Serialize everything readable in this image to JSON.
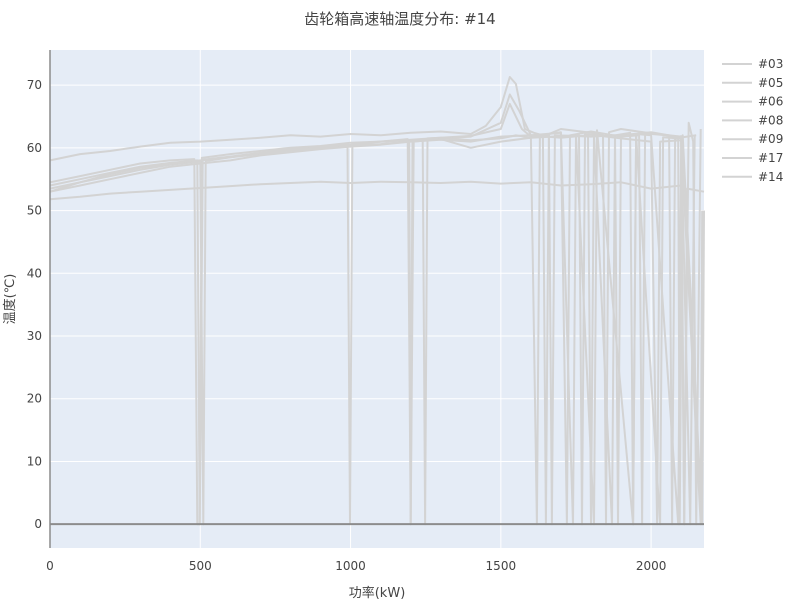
{
  "chart_data": {
    "type": "line",
    "title": "齿轮箱高速轴温度分布: #14",
    "xlabel": "功率(kW)",
    "ylabel": "温度(℃)",
    "xlim": [
      0,
      2176
    ],
    "ylim": [
      -3.8,
      75.6
    ],
    "xticks": [
      0,
      500,
      1000,
      1500,
      2000
    ],
    "yticks": [
      0,
      10,
      20,
      30,
      40,
      50,
      60,
      70
    ],
    "grid": true,
    "legend_position": "right",
    "colors": {
      "line": "#d3d3d3",
      "plot_bg": "#e5ecf6",
      "grid": "#ffffff",
      "zero_line": "#8c8c8c"
    },
    "series": [
      {
        "name": "#03",
        "points": [
          [
            0,
            58
          ],
          [
            100,
            59
          ],
          [
            200,
            59.5
          ],
          [
            300,
            60.2
          ],
          [
            400,
            60.8
          ],
          [
            500,
            61
          ],
          [
            600,
            61.3
          ],
          [
            700,
            61.6
          ],
          [
            800,
            62
          ],
          [
            900,
            61.8
          ],
          [
            1000,
            62.2
          ],
          [
            1100,
            62
          ],
          [
            1200,
            62.4
          ],
          [
            1300,
            62.6
          ],
          [
            1400,
            62.2
          ],
          [
            1450,
            63.5
          ],
          [
            1500,
            66.5
          ],
          [
            1530,
            71.3
          ],
          [
            1550,
            70.2
          ],
          [
            1580,
            63
          ],
          [
            1610,
            62.4
          ],
          [
            1640,
            62
          ],
          [
            1650,
            0
          ],
          [
            1660,
            62.2
          ],
          [
            1700,
            63
          ],
          [
            1800,
            62.4
          ],
          [
            1840,
            62
          ],
          [
            1850,
            0
          ],
          [
            1860,
            62.5
          ],
          [
            1900,
            63
          ],
          [
            2000,
            62.3
          ],
          [
            2100,
            61.8
          ],
          [
            2110,
            0
          ],
          [
            2125,
            64
          ],
          [
            2140,
            61
          ],
          [
            2150,
            0
          ],
          [
            2165,
            63
          ]
        ]
      },
      {
        "name": "#05",
        "points": [
          [
            0,
            54.5
          ],
          [
            100,
            55.5
          ],
          [
            200,
            56.5
          ],
          [
            300,
            57.5
          ],
          [
            400,
            58
          ],
          [
            480,
            58.2
          ],
          [
            490,
            0
          ],
          [
            498,
            0
          ],
          [
            505,
            58.4
          ],
          [
            600,
            59
          ],
          [
            700,
            59.5
          ],
          [
            800,
            60
          ],
          [
            900,
            60.3
          ],
          [
            1000,
            60.8
          ],
          [
            1100,
            61
          ],
          [
            1190,
            61.4
          ],
          [
            1200,
            0
          ],
          [
            1210,
            61.2
          ],
          [
            1300,
            61.5
          ],
          [
            1400,
            61.8
          ],
          [
            1500,
            64
          ],
          [
            1530,
            68.5
          ],
          [
            1560,
            66
          ],
          [
            1600,
            62
          ],
          [
            1700,
            62.4
          ],
          [
            1720,
            0
          ],
          [
            1730,
            62
          ],
          [
            1800,
            62.6
          ],
          [
            1900,
            61.8
          ],
          [
            1960,
            62
          ],
          [
            1970,
            0
          ],
          [
            1980,
            62.3
          ],
          [
            2050,
            62
          ],
          [
            2100,
            61.5
          ],
          [
            2130,
            0
          ],
          [
            2145,
            62
          ]
        ]
      },
      {
        "name": "#06",
        "points": [
          [
            0,
            53.5
          ],
          [
            100,
            54.5
          ],
          [
            200,
            55.5
          ],
          [
            300,
            56.5
          ],
          [
            400,
            57.3
          ],
          [
            500,
            57.8
          ],
          [
            510,
            0
          ],
          [
            518,
            57.9
          ],
          [
            600,
            58.5
          ],
          [
            700,
            59
          ],
          [
            800,
            59.6
          ],
          [
            900,
            60
          ],
          [
            1000,
            60.5
          ],
          [
            1100,
            61
          ],
          [
            1200,
            61.2
          ],
          [
            1240,
            61.3
          ],
          [
            1248,
            0
          ],
          [
            1256,
            61.5
          ],
          [
            1300,
            61.6
          ],
          [
            1400,
            61.9
          ],
          [
            1500,
            63
          ],
          [
            1530,
            67
          ],
          [
            1570,
            63
          ],
          [
            1600,
            61.8
          ],
          [
            1660,
            62
          ],
          [
            1670,
            0
          ],
          [
            1680,
            62
          ],
          [
            1800,
            61.8
          ],
          [
            1880,
            62
          ],
          [
            1890,
            0
          ],
          [
            1900,
            62
          ],
          [
            2000,
            62.5
          ],
          [
            2060,
            62
          ],
          [
            2070,
            0
          ],
          [
            2080,
            61.5
          ],
          [
            2150,
            62
          ]
        ]
      },
      {
        "name": "#08",
        "points": [
          [
            0,
            53
          ],
          [
            100,
            54.5
          ],
          [
            200,
            55.8
          ],
          [
            300,
            56.8
          ],
          [
            400,
            57.5
          ],
          [
            500,
            58
          ],
          [
            600,
            58.5
          ],
          [
            700,
            59.2
          ],
          [
            800,
            59.8
          ],
          [
            900,
            60.2
          ],
          [
            990,
            60.6
          ],
          [
            998,
            0
          ],
          [
            1006,
            60.7
          ],
          [
            1100,
            61
          ],
          [
            1200,
            61.3
          ],
          [
            1300,
            61.6
          ],
          [
            1400,
            61.2
          ],
          [
            1500,
            61.5
          ],
          [
            1550,
            62
          ],
          [
            1600,
            61.6
          ],
          [
            1760,
            62
          ],
          [
            1770,
            0
          ],
          [
            1780,
            62.2
          ],
          [
            1900,
            61.5
          ],
          [
            2000,
            61
          ],
          [
            2020,
            0
          ],
          [
            2030,
            61
          ],
          [
            2100,
            61.2
          ],
          [
            2165,
            0
          ],
          [
            2170,
            50
          ]
        ]
      },
      {
        "name": "#09",
        "points": [
          [
            0,
            51.8
          ],
          [
            100,
            52.2
          ],
          [
            200,
            52.7
          ],
          [
            300,
            53
          ],
          [
            400,
            53.3
          ],
          [
            500,
            53.6
          ],
          [
            600,
            53.9
          ],
          [
            700,
            54.2
          ],
          [
            800,
            54.4
          ],
          [
            900,
            54.6
          ],
          [
            1000,
            54.4
          ],
          [
            1100,
            54.6
          ],
          [
            1200,
            54.5
          ],
          [
            1300,
            54.4
          ],
          [
            1400,
            54.6
          ],
          [
            1500,
            54.3
          ],
          [
            1600,
            54.5
          ],
          [
            1700,
            54
          ],
          [
            1800,
            54.2
          ],
          [
            1900,
            54.5
          ],
          [
            2000,
            53.5
          ],
          [
            2100,
            54
          ],
          [
            2110,
            0
          ],
          [
            2120,
            53.5
          ],
          [
            2176,
            53
          ]
        ]
      },
      {
        "name": "#17",
        "points": [
          [
            0,
            54
          ],
          [
            100,
            55
          ],
          [
            200,
            56
          ],
          [
            300,
            57
          ],
          [
            400,
            57.6
          ],
          [
            490,
            58
          ],
          [
            498,
            0
          ],
          [
            508,
            58.1
          ],
          [
            600,
            58.6
          ],
          [
            700,
            59.2
          ],
          [
            800,
            59.6
          ],
          [
            900,
            60
          ],
          [
            1000,
            60.4
          ],
          [
            1100,
            60.6
          ],
          [
            1195,
            61
          ],
          [
            1200,
            0
          ],
          [
            1206,
            61
          ],
          [
            1300,
            61.4
          ],
          [
            1400,
            60
          ],
          [
            1500,
            61
          ],
          [
            1600,
            61.6
          ],
          [
            1620,
            0
          ],
          [
            1630,
            62
          ],
          [
            1700,
            62.5
          ],
          [
            1740,
            0
          ],
          [
            1750,
            62
          ],
          [
            1810,
            0
          ],
          [
            1820,
            62.8
          ],
          [
            1940,
            0
          ],
          [
            1950,
            62.2
          ],
          [
            2000,
            62
          ],
          [
            2090,
            0
          ],
          [
            2100,
            62
          ]
        ]
      },
      {
        "name": "#14",
        "points": [
          [
            0,
            53
          ],
          [
            100,
            54
          ],
          [
            200,
            55
          ],
          [
            300,
            56
          ],
          [
            400,
            57
          ],
          [
            500,
            57.5
          ],
          [
            600,
            58
          ],
          [
            700,
            58.8
          ],
          [
            800,
            59.3
          ],
          [
            900,
            59.8
          ],
          [
            1000,
            60.2
          ],
          [
            1100,
            60.5
          ],
          [
            1200,
            61
          ],
          [
            1300,
            61.3
          ],
          [
            1400,
            61
          ],
          [
            1500,
            61.8
          ],
          [
            1600,
            62
          ],
          [
            1700,
            61.6
          ],
          [
            1790,
            62
          ],
          [
            1800,
            0
          ],
          [
            1810,
            62
          ],
          [
            1870,
            0
          ],
          [
            1880,
            62
          ],
          [
            1930,
            62.4
          ],
          [
            1940,
            0
          ],
          [
            1950,
            62
          ],
          [
            2030,
            0
          ],
          [
            2040,
            61.7
          ],
          [
            2090,
            61.5
          ],
          [
            2095,
            0
          ],
          [
            2105,
            62
          ],
          [
            2170,
            0
          ],
          [
            2176,
            50
          ]
        ]
      }
    ]
  }
}
